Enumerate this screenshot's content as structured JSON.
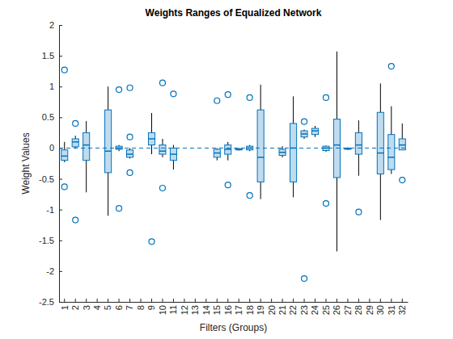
{
  "chart_data": {
    "type": "box",
    "title": "Weights Ranges of Equalized Network",
    "x_label": "Filters (Groups)",
    "y_label": "Weight Values",
    "categories": [
      "1",
      "2",
      "3",
      "4",
      "5",
      "6",
      "7",
      "8",
      "9",
      "10",
      "11",
      "12",
      "13",
      "14",
      "15",
      "16",
      "17",
      "18",
      "19",
      "20",
      "21",
      "22",
      "23",
      "24",
      "25",
      "26",
      "27",
      "28",
      "29",
      "30",
      "31",
      "32"
    ],
    "q1": [
      -0.2,
      0.02,
      -0.2,
      null,
      -0.4,
      -0.02,
      -0.15,
      null,
      0.05,
      -0.1,
      -0.2,
      null,
      null,
      null,
      -0.15,
      -0.1,
      -0.03,
      -0.03,
      -0.55,
      null,
      -0.12,
      -0.55,
      0.18,
      0.22,
      -0.04,
      -0.48,
      -0.02,
      -0.1,
      null,
      -0.42,
      -0.35,
      -0.03
    ],
    "median": [
      -0.13,
      0.1,
      0.05,
      null,
      -0.05,
      0,
      -0.1,
      null,
      0.15,
      -0.05,
      -0.1,
      null,
      null,
      null,
      -0.08,
      -0.02,
      -0.02,
      0,
      -0.15,
      null,
      -0.07,
      0,
      0.23,
      0.28,
      0,
      0.05,
      -0.01,
      0.05,
      null,
      -0.08,
      -0.15,
      0.05
    ],
    "q3": [
      -0.03,
      0.15,
      0.25,
      null,
      0.62,
      0.03,
      -0.03,
      null,
      0.25,
      0.05,
      0,
      null,
      null,
      null,
      -0.02,
      0.05,
      -0.01,
      0.03,
      0.62,
      null,
      -0.02,
      0.4,
      0.28,
      0.32,
      0.03,
      0.47,
      0,
      0.25,
      null,
      0.58,
      0.22,
      0.15
    ],
    "lower_whisker": [
      -0.23,
      0,
      -0.72,
      null,
      -1.1,
      -0.05,
      -0.17,
      null,
      -0.1,
      -0.15,
      -0.35,
      null,
      null,
      null,
      -0.2,
      -0.2,
      -0.04,
      -0.05,
      -0.83,
      null,
      -0.15,
      -0.8,
      0.15,
      0.18,
      -0.06,
      -1.68,
      -0.03,
      -0.45,
      null,
      -1.17,
      -0.42,
      -0.03
    ],
    "upper_whisker": [
      0.1,
      0.2,
      0.44,
      null,
      1,
      0.05,
      0,
      null,
      0.57,
      0.15,
      0.05,
      null,
      null,
      null,
      0,
      0.1,
      0,
      0.05,
      1.03,
      null,
      0.03,
      0.84,
      0.3,
      0.36,
      0.04,
      1.57,
      0.01,
      0.45,
      null,
      1.05,
      0.68,
      0.4
    ],
    "outliers": [
      [
        1.27,
        -0.63
      ],
      [
        0.4,
        -1.17
      ],
      [],
      [],
      [],
      [
        0.95,
        -0.98
      ],
      [
        0.98,
        0.18,
        -0.4
      ],
      [],
      [
        -1.52
      ],
      [
        1.06,
        -0.65
      ],
      [
        0.88
      ],
      [],
      [],
      [],
      [
        0.77
      ],
      [
        0.87,
        -0.6
      ],
      [],
      [
        0.82,
        -0.77
      ],
      [],
      [],
      [],
      [],
      [
        0.43,
        -2.12
      ],
      [],
      [
        0.82,
        -0.9
      ],
      [],
      [],
      [
        -1.04
      ],
      [],
      [],
      [
        1.33
      ],
      [
        -0.52
      ]
    ],
    "reference_line": {
      "value": 0,
      "line_style": "dashed"
    },
    "color": "#0072bd",
    "ylim": [
      -2.5,
      2
    ],
    "yticks": [
      -2.5,
      -2,
      -1.5,
      -1,
      -0.5,
      0,
      0.5,
      1,
      1.5,
      2
    ]
  }
}
